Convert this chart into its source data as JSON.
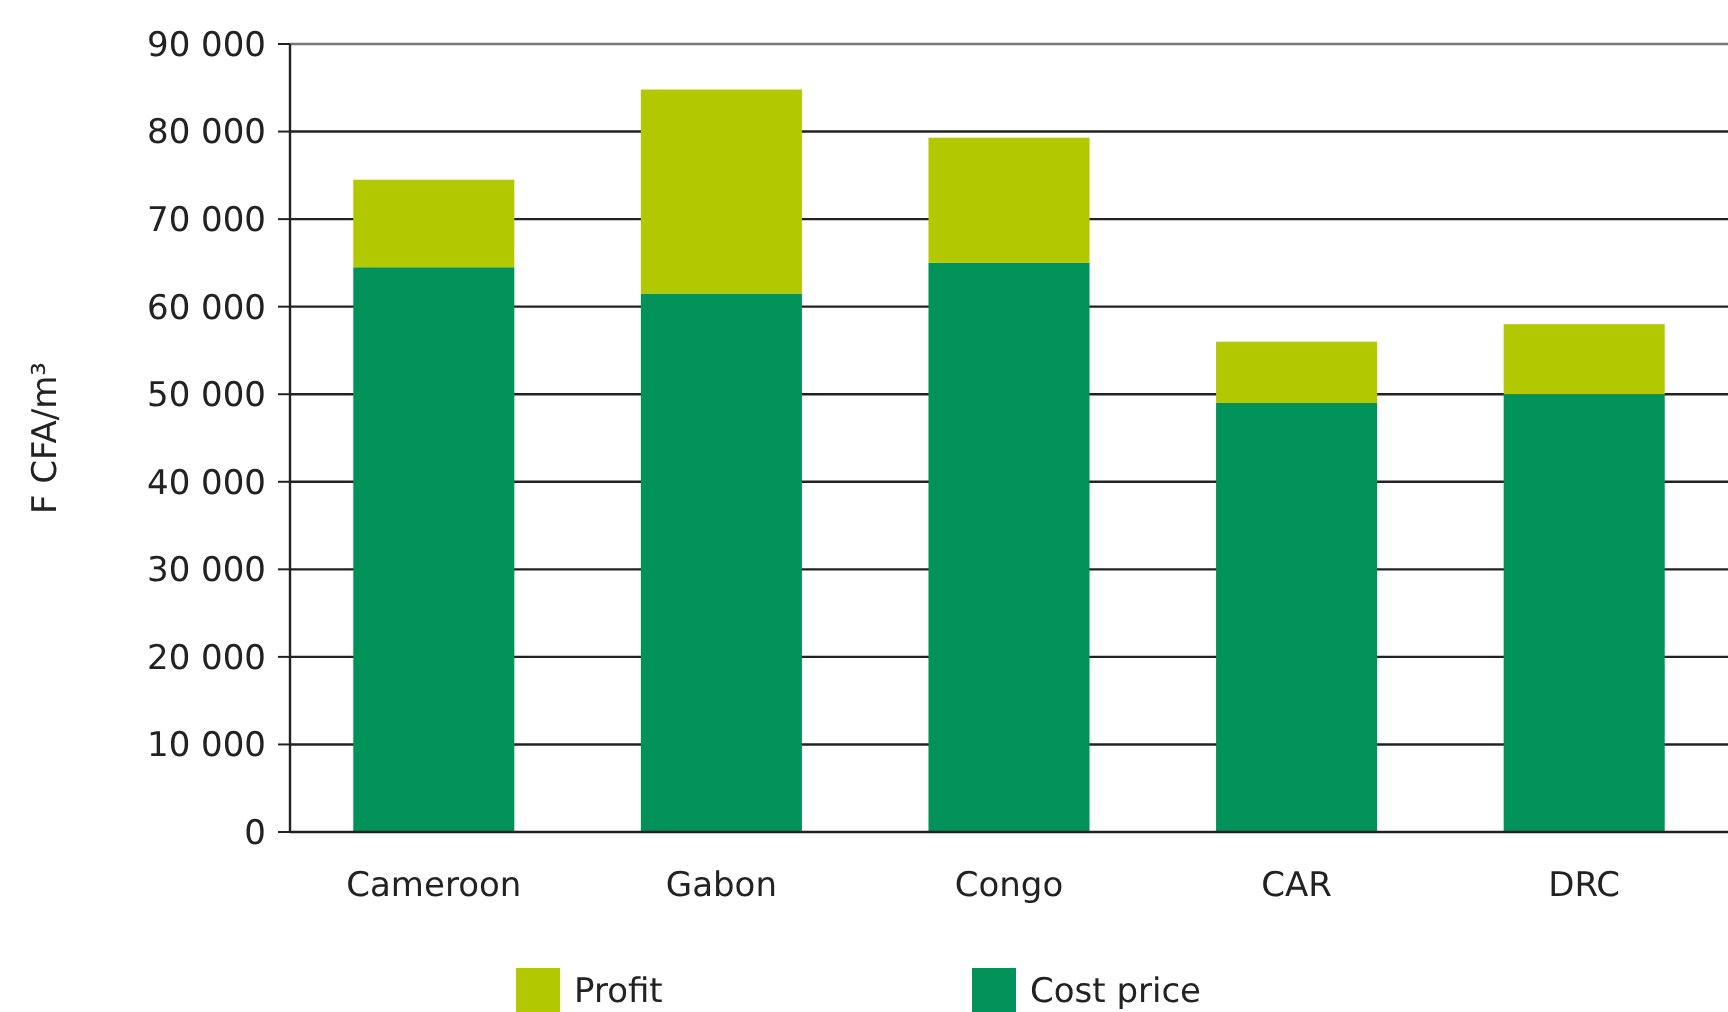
{
  "chart_data": {
    "type": "bar",
    "ylabel": "F CFA/m³",
    "categories": [
      "Cameroon",
      "Gabon",
      "Congo",
      "CAR",
      "DRC"
    ],
    "stacked": true,
    "series": [
      {
        "name": "Cost price",
        "color": "#009259",
        "values": [
          64500,
          61500,
          65000,
          49000,
          50000
        ]
      },
      {
        "name": "Profit",
        "color": "#b2c800",
        "values": [
          10000,
          23300,
          14300,
          7000,
          8000
        ]
      }
    ],
    "ylim": [
      0,
      90000
    ],
    "yticks": [
      {
        "value": 0,
        "label": "0"
      },
      {
        "value": 10000,
        "label": "10 000"
      },
      {
        "value": 20000,
        "label": "20 000"
      },
      {
        "value": 30000,
        "label": "30 000"
      },
      {
        "value": 40000,
        "label": "40 000"
      },
      {
        "value": 50000,
        "label": "50 000"
      },
      {
        "value": 60000,
        "label": "60 000"
      },
      {
        "value": 70000,
        "label": "70 000"
      },
      {
        "value": 80000,
        "label": "80 000"
      },
      {
        "value": 90000,
        "label": "90 000"
      }
    ],
    "grid": "y",
    "legend": "bottom"
  }
}
